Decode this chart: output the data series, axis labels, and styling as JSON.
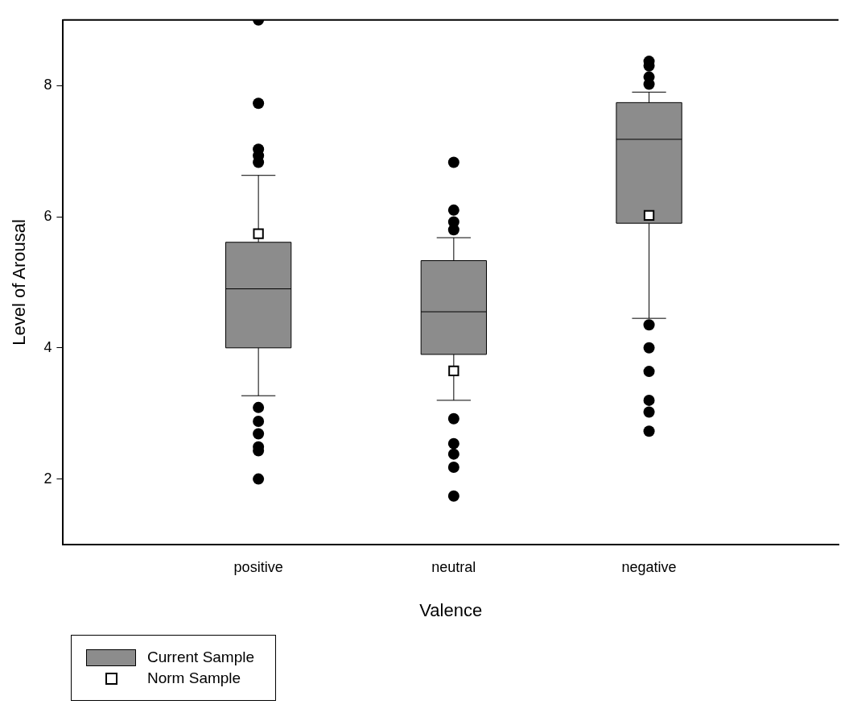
{
  "chart_data": {
    "type": "box",
    "xlabel": "Valence",
    "ylabel": "Level of Arousal",
    "categories": [
      "positive",
      "neutral",
      "negative"
    ],
    "ylim": [
      1,
      9
    ],
    "yticks": [
      2,
      4,
      6,
      8
    ],
    "grid": false,
    "legend": "bottom left",
    "series": [
      {
        "name": "Current Sample",
        "color": "#8c8c8c",
        "boxes": [
          {
            "low": 3.27,
            "q1": 4.0,
            "median": 4.9,
            "q3": 5.61,
            "high": 6.63,
            "outliers": [
              9.0,
              7.73,
              7.03,
              6.93,
              6.83,
              3.09,
              2.88,
              2.69,
              2.49,
              2.43,
              2.0
            ]
          },
          {
            "low": 3.2,
            "q1": 3.9,
            "median": 4.55,
            "q3": 5.33,
            "high": 5.68,
            "outliers": [
              6.83,
              6.1,
              5.92,
              5.8,
              2.92,
              2.54,
              2.38,
              2.18,
              1.74
            ]
          },
          {
            "low": 4.45,
            "q1": 5.9,
            "median": 7.18,
            "q3": 7.74,
            "high": 7.9,
            "outliers": [
              8.37,
              8.3,
              8.13,
              8.02,
              4.35,
              4.0,
              3.64,
              3.2,
              3.02,
              2.73
            ]
          }
        ]
      },
      {
        "name": "Norm Sample",
        "type": "scatter",
        "color": "#ffffff",
        "marker": "square",
        "x": [
          "positive",
          "neutral",
          "negative"
        ],
        "values": [
          5.74,
          3.65,
          6.02
        ]
      }
    ]
  }
}
